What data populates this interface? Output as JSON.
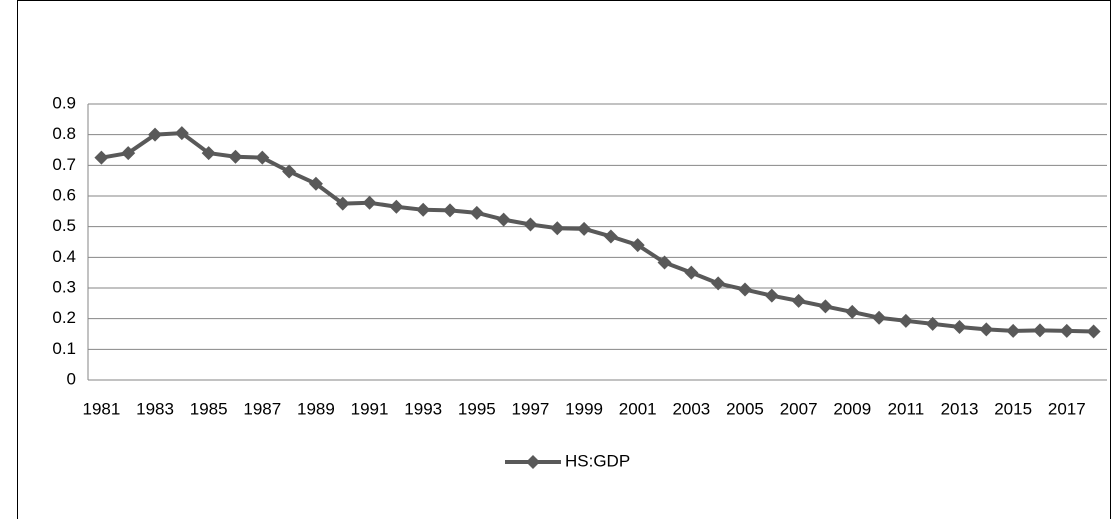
{
  "chart_data": {
    "type": "line",
    "categories": [
      "1981",
      null,
      "1983",
      null,
      "1985",
      null,
      "1987",
      null,
      "1989",
      null,
      "1991",
      null,
      "1993",
      null,
      "1995",
      null,
      "1997",
      null,
      "1999",
      null,
      "2001",
      null,
      "2003",
      null,
      "2005",
      null,
      "2007",
      null,
      "2009",
      null,
      "2011",
      null,
      "2013",
      null,
      "2015",
      null,
      "2017",
      null
    ],
    "series": [
      {
        "name": "HS:GDP",
        "color": "#595959",
        "values": [
          0.725,
          0.74,
          0.8,
          0.805,
          0.74,
          0.728,
          0.725,
          0.68,
          0.64,
          0.575,
          0.578,
          0.565,
          0.555,
          0.553,
          0.545,
          0.523,
          0.507,
          0.495,
          0.493,
          0.468,
          0.44,
          0.383,
          0.35,
          0.315,
          0.295,
          0.275,
          0.258,
          0.24,
          0.222,
          0.203,
          0.193,
          0.183,
          0.173,
          0.165,
          0.16,
          0.162,
          0.16,
          0.158
        ]
      }
    ],
    "ylim": [
      0,
      0.9
    ],
    "yticks": [
      0,
      0.1,
      0.2,
      0.3,
      0.4,
      0.5,
      0.6,
      0.7,
      0.8,
      0.9
    ],
    "grid": true,
    "legend": "bottom"
  }
}
